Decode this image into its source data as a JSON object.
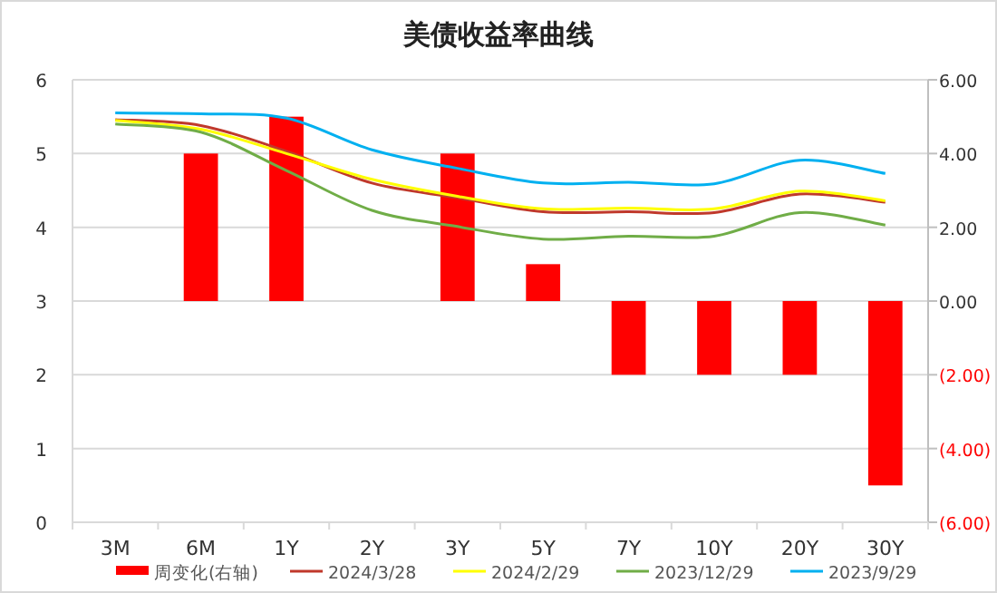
{
  "chart_data": {
    "type": "line",
    "title": "美债收益率曲线",
    "categories": [
      "3M",
      "6M",
      "1Y",
      "2Y",
      "3Y",
      "5Y",
      "7Y",
      "10Y",
      "20Y",
      "30Y"
    ],
    "series": [
      {
        "name": "周变化(右轴)",
        "type": "bar",
        "axis": "y2",
        "color": "#ff0000",
        "values": [
          0,
          4,
          5,
          0,
          4,
          1,
          -2,
          -2,
          -2,
          -5
        ]
      },
      {
        "name": "2024/3/28",
        "color": "#c0392b",
        "values": [
          5.46,
          5.38,
          5.03,
          4.6,
          4.4,
          4.21,
          4.21,
          4.2,
          4.45,
          4.34
        ]
      },
      {
        "name": "2024/2/29",
        "color": "#ffff00",
        "values": [
          5.45,
          5.33,
          5.0,
          4.65,
          4.42,
          4.25,
          4.26,
          4.25,
          4.49,
          4.36
        ]
      },
      {
        "name": "2023/12/29",
        "color": "#70ad47",
        "values": [
          5.4,
          5.29,
          4.77,
          4.23,
          4.01,
          3.84,
          3.88,
          3.88,
          4.2,
          4.03
        ]
      },
      {
        "name": "2023/9/29",
        "color": "#00b0f0",
        "values": [
          5.55,
          5.54,
          5.48,
          5.05,
          4.8,
          4.6,
          4.61,
          4.59,
          4.91,
          4.73
        ]
      }
    ],
    "ylim": [
      0,
      6
    ],
    "yticks": [
      0,
      1,
      2,
      3,
      4,
      5,
      6
    ],
    "y2lim": [
      -6,
      6
    ],
    "y2ticks": [
      {
        "value": -6,
        "label": "(6.00)"
      },
      {
        "value": -4,
        "label": "(4.00)"
      },
      {
        "value": -2,
        "label": "(2.00)"
      },
      {
        "value": 0,
        "label": "0.00"
      },
      {
        "value": 2,
        "label": "2.00"
      },
      {
        "value": 4,
        "label": "4.00"
      },
      {
        "value": 6,
        "label": "6.00"
      }
    ],
    "grid": "y",
    "legend": "bottom",
    "line_style": "solid"
  }
}
